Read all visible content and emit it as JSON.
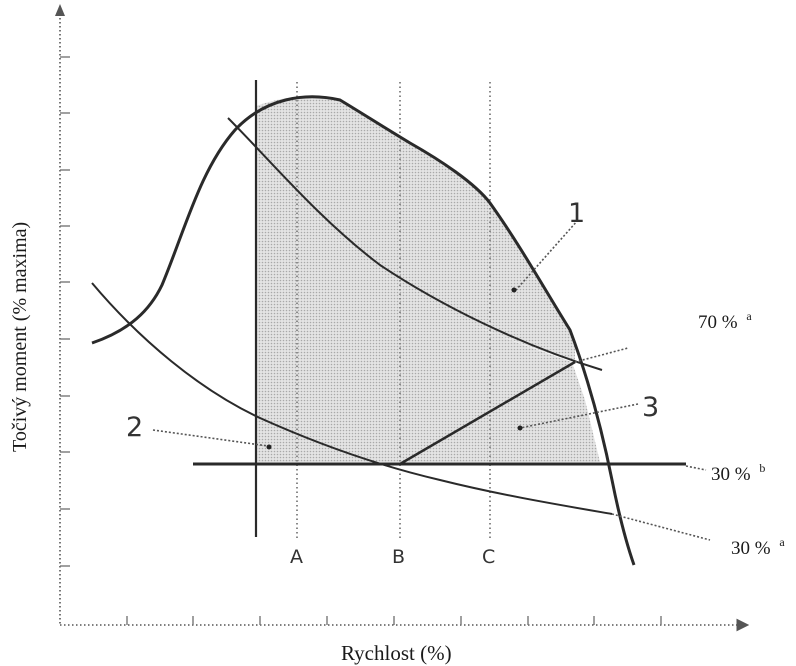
{
  "axes": {
    "xlabel": "Rychlost (%)",
    "ylabel": "Točivý moment (% maxima)"
  },
  "markers": {
    "a": "A",
    "b": "B",
    "c": "C"
  },
  "regions": {
    "r1": "1",
    "r2": "2",
    "r3": "3"
  },
  "levels": {
    "l70a": {
      "value": "70 %",
      "sup": "a"
    },
    "l30b": {
      "value": "30 %",
      "sup": "b"
    },
    "l30a": {
      "value": "30 %",
      "sup": "a"
    }
  },
  "colors": {
    "line": "#2a2a2a",
    "shade": "#d6d6d6",
    "axis": "#555555"
  }
}
